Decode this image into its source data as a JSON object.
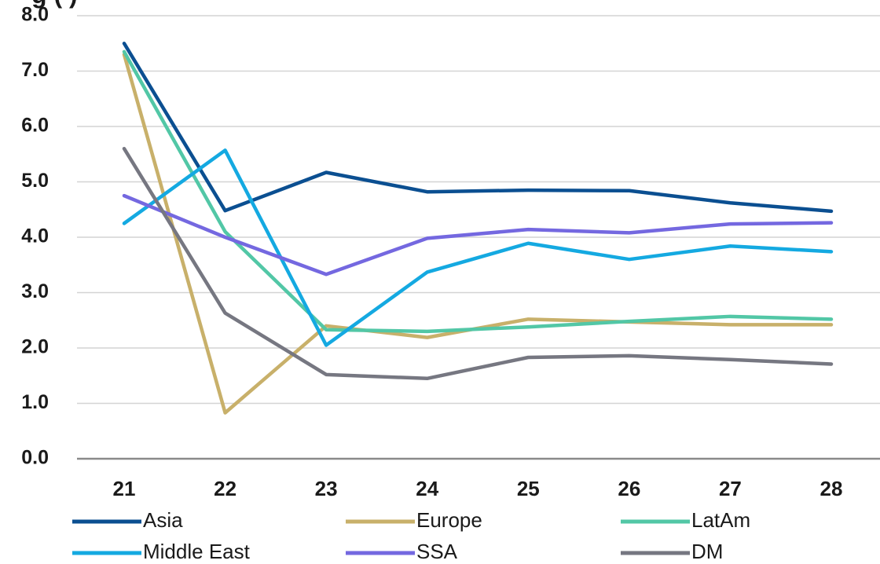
{
  "chart_data": {
    "type": "line",
    "title": "g (  )",
    "x": [
      "21",
      "22",
      "23",
      "24",
      "25",
      "26",
      "27",
      "28"
    ],
    "ylim": [
      0,
      8
    ],
    "yticks": [
      "0.0",
      "1.0",
      "2.0",
      "3.0",
      "4.0",
      "5.0",
      "6.0",
      "7.0",
      "8.0"
    ],
    "grid": true,
    "legend_position": "bottom",
    "series": [
      {
        "name": "Asia",
        "color": "#0b4f91",
        "values": [
          7.5,
          4.48,
          5.17,
          4.82,
          4.85,
          4.84,
          4.62,
          4.47
        ]
      },
      {
        "name": "Europe",
        "color": "#c8b06a",
        "values": [
          7.3,
          0.83,
          2.4,
          2.19,
          2.52,
          2.47,
          2.42,
          2.42
        ]
      },
      {
        "name": "LatAm",
        "color": "#52c7a6",
        "values": [
          7.35,
          4.1,
          2.33,
          2.3,
          2.38,
          2.48,
          2.57,
          2.52
        ]
      },
      {
        "name": "Middle East",
        "color": "#14a9e1",
        "values": [
          4.25,
          5.57,
          2.05,
          3.37,
          3.89,
          3.6,
          3.84,
          3.74
        ]
      },
      {
        "name": "SSA",
        "color": "#7468e0",
        "values": [
          4.75,
          4.0,
          3.33,
          3.98,
          4.14,
          4.08,
          4.24,
          4.26
        ]
      },
      {
        "name": "DM",
        "color": "#767781",
        "values": [
          5.6,
          2.63,
          1.52,
          1.45,
          1.83,
          1.86,
          1.79,
          1.71
        ]
      }
    ]
  }
}
